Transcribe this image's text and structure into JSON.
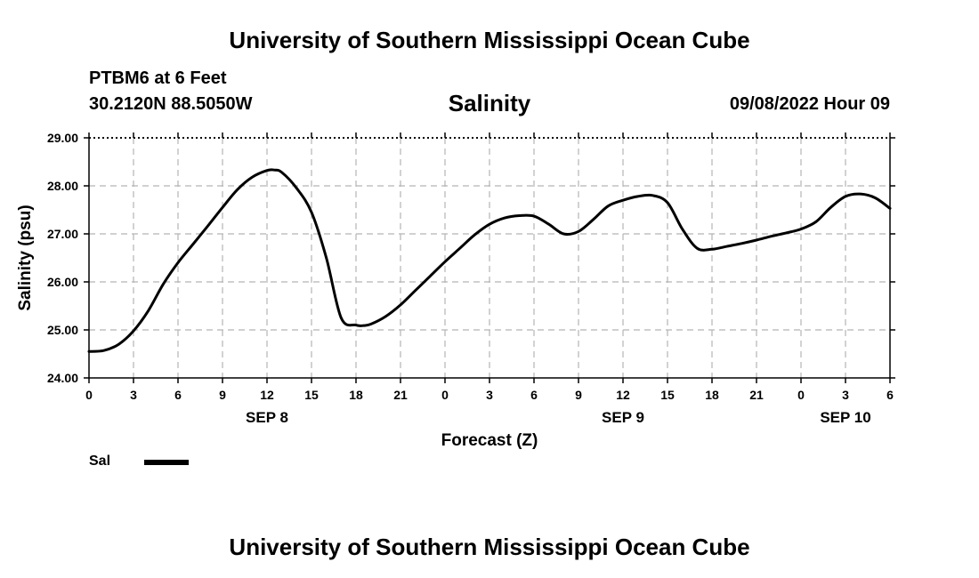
{
  "header": {
    "title": "University of Southern Mississippi Ocean Cube",
    "station": "PTBM6 at 6 Feet",
    "coords": "30.2120N  88.5050W",
    "chart_title": "Salinity",
    "timestamp": "09/08/2022 Hour 09"
  },
  "footer": {
    "title": "University of Southern Mississippi Ocean Cube"
  },
  "legend": {
    "label": "Sal",
    "color": "#000000"
  },
  "chart_data": {
    "type": "line",
    "title": "Salinity",
    "xlabel": "Forecast (Z)",
    "ylabel": "Salinity (psu)",
    "ylim": [
      24.0,
      29.0
    ],
    "xlim_hours": [
      0,
      54
    ],
    "y_ticks": [
      "24.00",
      "25.00",
      "26.00",
      "27.00",
      "28.00",
      "29.00"
    ],
    "x_ticks": [
      "0",
      "3",
      "6",
      "9",
      "12",
      "15",
      "18",
      "21",
      "0",
      "3",
      "6",
      "9",
      "12",
      "15",
      "18",
      "21",
      "0",
      "3",
      "6"
    ],
    "date_labels": [
      {
        "label": "SEP 8",
        "hour": 12
      },
      {
        "label": "SEP 9",
        "hour": 36
      },
      {
        "label": "SEP 10",
        "hour": 51
      }
    ],
    "grid": true,
    "series": [
      {
        "name": "Sal",
        "color": "#000000",
        "x": [
          0,
          1,
          2,
          3,
          4,
          5,
          6,
          7,
          8,
          9,
          10,
          11,
          12,
          12.5,
          13,
          14,
          15,
          16,
          17,
          18,
          18.5,
          19,
          20,
          21,
          22,
          23,
          24,
          25,
          26,
          27,
          28,
          29,
          30,
          31,
          32,
          33,
          34,
          35,
          36,
          37,
          38,
          39,
          40,
          41,
          42,
          43,
          44,
          45,
          46,
          47,
          48,
          49,
          50,
          51,
          52,
          53,
          54
        ],
        "y": [
          24.55,
          24.57,
          24.7,
          24.98,
          25.4,
          25.95,
          26.4,
          26.78,
          27.16,
          27.55,
          27.92,
          28.18,
          28.32,
          28.33,
          28.28,
          27.95,
          27.45,
          26.5,
          25.25,
          25.1,
          25.09,
          25.12,
          25.28,
          25.52,
          25.82,
          26.12,
          26.42,
          26.7,
          26.98,
          27.2,
          27.33,
          27.38,
          27.37,
          27.2,
          27.0,
          27.05,
          27.3,
          27.58,
          27.7,
          27.78,
          27.8,
          27.65,
          27.1,
          26.7,
          26.68,
          26.74,
          26.8,
          26.87,
          26.95,
          27.02,
          27.1,
          27.25,
          27.55,
          27.78,
          27.83,
          27.75,
          27.53
        ]
      }
    ]
  }
}
